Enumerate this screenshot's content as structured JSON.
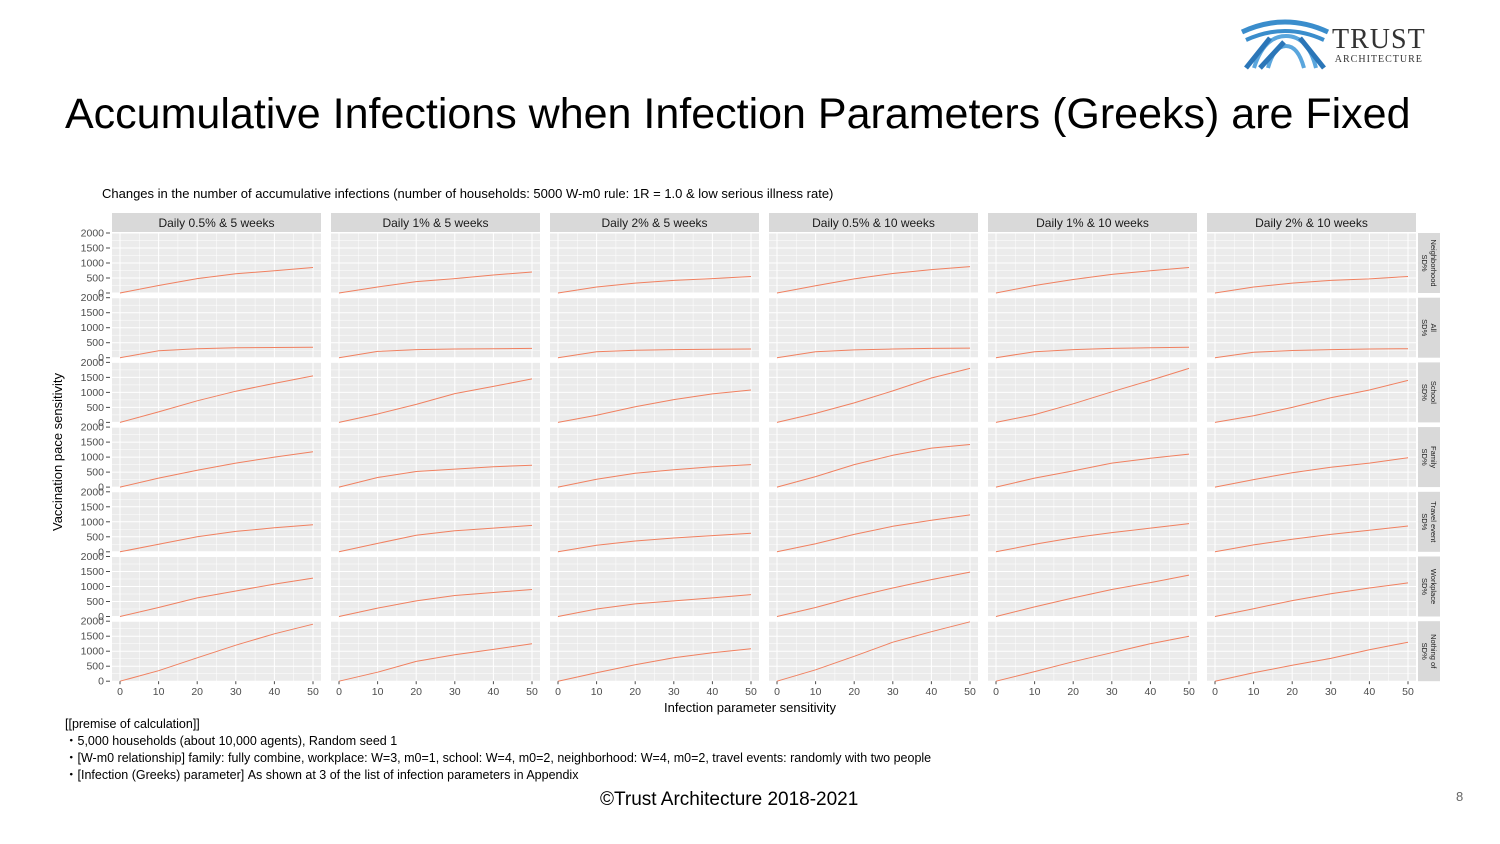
{
  "logo": {
    "name": "TRUST",
    "sub": "ARCHITECTURE",
    "icon": "trust-architecture-logo-icon"
  },
  "title": "Accumulative Infections when Infection Parameters (Greeks) are Fixed",
  "subtitle": "Changes in the number of accumulative infections (number of households: 5000 W-m0 rule: 1R = 1.0 & low serious illness rate)",
  "notes": [
    "[[premise of calculation]]",
    "・5,000 households (about 10,000 agents), Random seed 1",
    "・[W-m0 relationship] family: fully combine, workplace: W=3, m0=1, school: W=4, m0=2, neighborhood: W=4, m0=2, travel events: randomly with two people",
    "・[Infection (Greeks) parameter] As shown at 3 of the list of infection parameters in Appendix"
  ],
  "footer": "©Trust Architecture 2018-2021",
  "page_number": "8",
  "colors": {
    "line": "#F08060",
    "panel": "#EBEBEB",
    "strip": "#D9D9D9",
    "grid": "#FFFFFF"
  },
  "chart_data": {
    "type": "line",
    "facet": "grid",
    "xlabel": "Infection parameter sensitivity",
    "ylabel": "Vaccination pace sensitivity",
    "x_ticks": [
      0,
      10,
      20,
      30,
      40,
      50
    ],
    "y_ticks": [
      0,
      500,
      1000,
      1500,
      2000
    ],
    "xlim": [
      0,
      50
    ],
    "ylim": [
      0,
      2000
    ],
    "grid": true,
    "columns": [
      "Daily 0.5% & 5 weeks",
      "Daily 1% & 5 weeks",
      "Daily 2% & 5 weeks",
      "Daily 0.5% & 10 weeks",
      "Daily 1% & 10 weeks",
      "Daily 2% & 10 weeks"
    ],
    "rows": [
      "Neighborhood SD%",
      "All SD%",
      "School SD%",
      "Family SD%",
      "Travel event SD%",
      "Workplace SD%",
      "Nothing of SD%"
    ],
    "x": [
      0,
      10,
      20,
      30,
      40,
      50
    ],
    "values": [
      [
        [
          0,
          250,
          480,
          640,
          740,
          850
        ],
        [
          0,
          200,
          380,
          480,
          600,
          700
        ],
        [
          0,
          200,
          330,
          420,
          480,
          550
        ],
        [
          0,
          240,
          470,
          650,
          780,
          880
        ],
        [
          0,
          250,
          450,
          620,
          740,
          850
        ],
        [
          0,
          200,
          330,
          420,
          470,
          550
        ]
      ],
      [
        [
          0,
          230,
          300,
          330,
          340,
          350
        ],
        [
          0,
          210,
          270,
          290,
          300,
          310
        ],
        [
          0,
          200,
          250,
          270,
          280,
          290
        ],
        [
          0,
          200,
          260,
          290,
          310,
          320
        ],
        [
          0,
          200,
          270,
          310,
          330,
          350
        ],
        [
          0,
          180,
          240,
          270,
          290,
          300
        ]
      ],
      [
        [
          0,
          350,
          720,
          1040,
          1300,
          1550
        ],
        [
          0,
          280,
          600,
          960,
          1200,
          1450
        ],
        [
          0,
          240,
          520,
          760,
          950,
          1080
        ],
        [
          0,
          300,
          650,
          1050,
          1480,
          1800
        ],
        [
          0,
          260,
          620,
          1020,
          1400,
          1800
        ],
        [
          0,
          220,
          500,
          820,
          1080,
          1400
        ]
      ],
      [
        [
          0,
          300,
          560,
          800,
          1000,
          1180
        ],
        [
          0,
          320,
          520,
          600,
          680,
          730
        ],
        [
          0,
          260,
          460,
          580,
          680,
          750
        ],
        [
          0,
          350,
          750,
          1060,
          1300,
          1420
        ],
        [
          0,
          300,
          540,
          800,
          960,
          1100
        ],
        [
          0,
          250,
          480,
          660,
          800,
          980
        ]
      ],
      [
        [
          0,
          250,
          500,
          680,
          800,
          900
        ],
        [
          0,
          280,
          550,
          700,
          790,
          880
        ],
        [
          0,
          220,
          360,
          460,
          540,
          620
        ],
        [
          0,
          270,
          580,
          850,
          1050,
          1230
        ],
        [
          0,
          250,
          470,
          640,
          790,
          940
        ],
        [
          0,
          230,
          420,
          580,
          720,
          860
        ]
      ],
      [
        [
          0,
          300,
          620,
          850,
          1080,
          1280
        ],
        [
          0,
          280,
          520,
          700,
          800,
          900
        ],
        [
          0,
          250,
          420,
          520,
          620,
          730
        ],
        [
          0,
          300,
          650,
          950,
          1230,
          1480
        ],
        [
          0,
          320,
          620,
          900,
          1130,
          1380
        ],
        [
          0,
          260,
          530,
          760,
          950,
          1120
        ]
      ],
      [
        [
          0,
          350,
          780,
          1200,
          1580,
          1900
        ],
        [
          0,
          300,
          660,
          880,
          1060,
          1250
        ],
        [
          0,
          280,
          550,
          780,
          950,
          1080
        ],
        [
          0,
          380,
          830,
          1300,
          1650,
          1980
        ],
        [
          0,
          320,
          650,
          950,
          1250,
          1500
        ],
        [
          0,
          280,
          530,
          760,
          1050,
          1300
        ]
      ]
    ]
  }
}
